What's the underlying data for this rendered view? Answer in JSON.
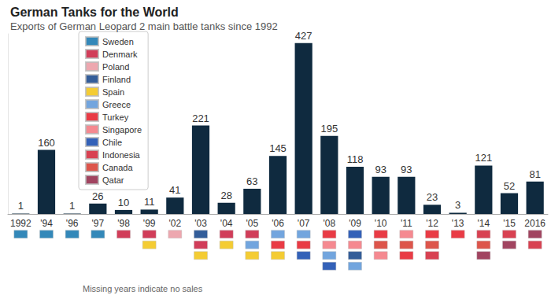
{
  "chart_data": {
    "type": "bar",
    "title": "German Tanks for the World",
    "subtitle": "Exports of German Leopard 2 main battle tanks since 1992",
    "note": "Missing years indicate no sales",
    "categories": [
      "1992",
      "'94",
      "'96",
      "'97",
      "'98",
      "'99",
      "'02",
      "'03",
      "'04",
      "'05",
      "'06",
      "'07",
      "'08",
      "'09",
      "'10",
      "'11",
      "'12",
      "'13",
      "'14",
      "'15",
      "2016"
    ],
    "values": [
      1,
      160,
      1,
      26,
      10,
      11,
      41,
      221,
      28,
      63,
      145,
      427,
      195,
      118,
      93,
      93,
      23,
      3,
      121,
      52,
      81
    ],
    "color": "#0f2a3f",
    "ylim": [
      0,
      450
    ],
    "grid": false,
    "data_labels": true,
    "tick_labels": "x",
    "legend": "top-left",
    "countries": [
      {
        "name": "Sweden",
        "color": "#006aa7"
      },
      {
        "name": "Denmark",
        "color": "#c60c30"
      },
      {
        "name": "Poland",
        "color": "#e8919b"
      },
      {
        "name": "Finland",
        "color": "#003580"
      },
      {
        "name": "Spain",
        "color": "#f1bf00"
      },
      {
        "name": "Greece",
        "color": "#4f8fd6"
      },
      {
        "name": "Turkey",
        "color": "#e30a17"
      },
      {
        "name": "Singapore",
        "color": "#f26b74"
      },
      {
        "name": "Chile",
        "color": "#0039a6"
      },
      {
        "name": "Indonesia",
        "color": "#ce1126"
      },
      {
        "name": "Canada",
        "color": "#d52b1e"
      },
      {
        "name": "Qatar",
        "color": "#8a1538"
      }
    ],
    "buyers": [
      [
        "Sweden"
      ],
      [
        "Sweden"
      ],
      [
        "Sweden"
      ],
      [
        "Sweden"
      ],
      [
        "Denmark"
      ],
      [
        "Denmark",
        "Spain"
      ],
      [
        "Poland"
      ],
      [
        "Finland",
        "Denmark",
        "Spain"
      ],
      [
        "Denmark",
        "Spain"
      ],
      [
        "Denmark",
        "Greece",
        "Spain"
      ],
      [
        "Greece",
        "Turkey",
        "Spain"
      ],
      [
        "Greece",
        "Turkey",
        "Chile"
      ],
      [
        "Turkey",
        "Singapore",
        "Greece",
        "Chile"
      ],
      [
        "Chile",
        "Singapore",
        "Finland",
        "Greece"
      ],
      [
        "Turkey",
        "Canada",
        "Singapore"
      ],
      [
        "Singapore",
        "Canada",
        "Turkey"
      ],
      [
        "Turkey",
        "Canada",
        "Indonesia"
      ],
      [
        "Turkey"
      ],
      [
        "Indonesia",
        "Canada",
        "Qatar"
      ],
      [
        "Indonesia",
        "Qatar"
      ],
      [
        "Qatar",
        "Indonesia"
      ]
    ]
  }
}
